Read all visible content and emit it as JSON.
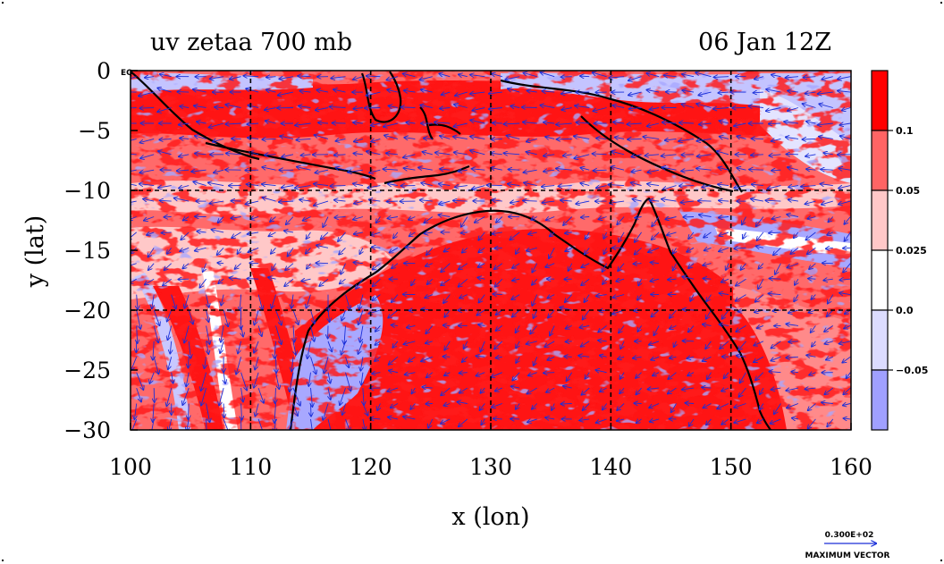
{
  "chart_data": {
    "type": "heatmap",
    "title": "uv zetaa 700 mb",
    "subtitle": "06 Jan 12Z",
    "xlabel": "x (lon)",
    "ylabel": "y (lat)",
    "xlim": [
      100,
      160
    ],
    "ylim": [
      -30,
      0
    ],
    "xticks": [
      "100",
      "110",
      "120",
      "130",
      "140",
      "150",
      "160"
    ],
    "yticks": [
      "0",
      "−5",
      "−10",
      "−15",
      "−20",
      "−25",
      "−30"
    ],
    "grid": true,
    "corner_label": "EQ",
    "colorbar": {
      "levels": [
        "0.1",
        "0.05",
        "0.025",
        "0.0",
        "−0.05"
      ],
      "colors": [
        "#ff0000",
        "#ff6464",
        "#ffc8c8",
        "#ffffff",
        "#dcdcff",
        "#a0a0ff"
      ]
    },
    "vector_key": {
      "value": "0.300E+02",
      "label": "MAXIMUM VECTOR"
    },
    "field_colors": {
      "strong_pos": "#ff1010",
      "mid_pos": "#ff6a6a",
      "weak_pos": "#ffc8c8",
      "weak_neg": "#dcdcff",
      "strong_neg": "#a0a0ff",
      "vectors": "#1a2fd8",
      "coast": "#000000"
    }
  }
}
